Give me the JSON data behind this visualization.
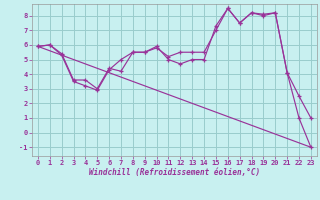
{
  "xlabel": "Windchill (Refroidissement éolien,°C)",
  "background_color": "#c8f0f0",
  "grid_color": "#99cccc",
  "line_color": "#993399",
  "tick_color": "#993399",
  "xlim": [
    -0.5,
    23.5
  ],
  "ylim": [
    -1.6,
    8.8
  ],
  "xticks": [
    0,
    1,
    2,
    3,
    4,
    5,
    6,
    7,
    8,
    9,
    10,
    11,
    12,
    13,
    14,
    15,
    16,
    17,
    18,
    19,
    20,
    21,
    22,
    23
  ],
  "yticks": [
    -1,
    0,
    1,
    2,
    3,
    4,
    5,
    6,
    7,
    8
  ],
  "series1_x": [
    0,
    1,
    2,
    3,
    4,
    5,
    6,
    7,
    8,
    9,
    10,
    11,
    12,
    13,
    14,
    15,
    16,
    17,
    18,
    19,
    20,
    21,
    22,
    23
  ],
  "series1_y": [
    5.9,
    6.0,
    5.4,
    3.6,
    3.6,
    3.0,
    4.4,
    4.2,
    5.5,
    5.5,
    5.9,
    5.0,
    4.7,
    5.0,
    5.0,
    7.3,
    8.5,
    7.5,
    8.2,
    8.1,
    8.2,
    4.1,
    2.5,
    1.0
  ],
  "series2_x": [
    0,
    1,
    2,
    3,
    4,
    5,
    6,
    7,
    8,
    9,
    10,
    11,
    12,
    13,
    14,
    15,
    16,
    17,
    18,
    19,
    20,
    21,
    22,
    23
  ],
  "series2_y": [
    5.9,
    6.0,
    5.3,
    3.5,
    3.2,
    2.9,
    4.3,
    5.0,
    5.5,
    5.5,
    5.8,
    5.2,
    5.5,
    5.5,
    5.5,
    7.0,
    8.5,
    7.5,
    8.2,
    8.0,
    8.2,
    4.1,
    1.0,
    -1.0
  ],
  "series3_x": [
    0,
    23
  ],
  "series3_y": [
    5.9,
    -1.0
  ]
}
